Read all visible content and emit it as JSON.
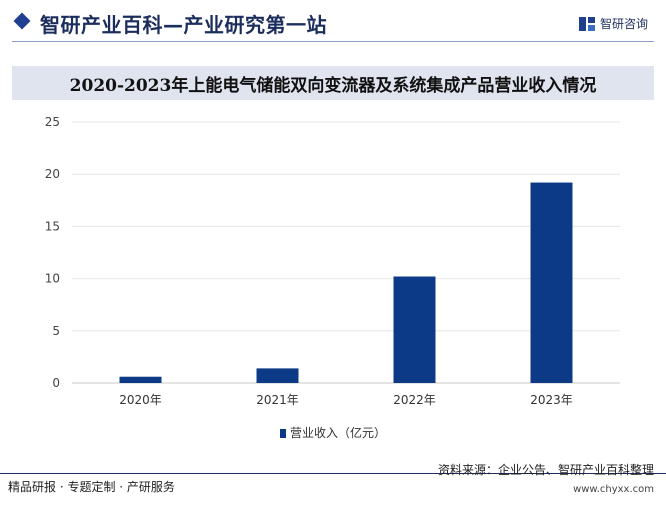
{
  "header": {
    "site_title": "智研产业百科—产业研究第一站",
    "brand": "智研咨询"
  },
  "chart_data": {
    "type": "bar",
    "title": "2020-2023年上能电气储能双向变流器及系统集成产品营业收入情况",
    "categories": [
      "2020年",
      "2021年",
      "2022年",
      "2023年"
    ],
    "series": [
      {
        "name": "营业收入（亿元）",
        "values": [
          0.6,
          1.4,
          10.2,
          19.2
        ]
      }
    ],
    "y_ticks": [
      "0",
      "5",
      "10",
      "15",
      "20",
      "25"
    ],
    "ylim": [
      0,
      25
    ],
    "grid": true,
    "legend_position": "bottom",
    "bar_color": "#0d3a87"
  },
  "footer": {
    "left": "精品研报 · 专题定制 · 产研服务",
    "source": "资料来源：企业公告、智研产业百科整理",
    "url": "www.chyxx.com"
  }
}
